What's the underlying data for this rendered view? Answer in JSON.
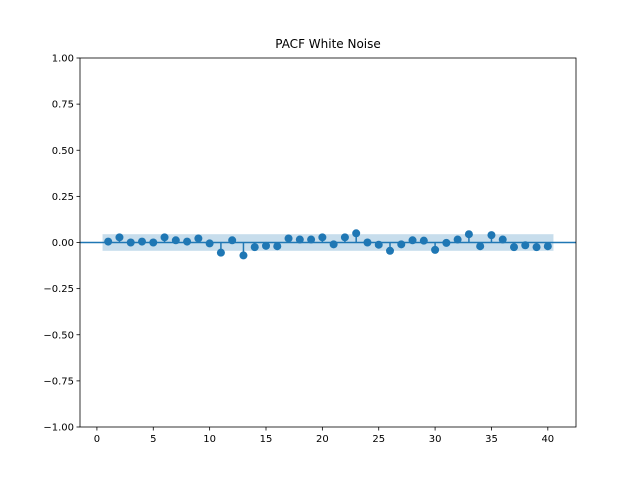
{
  "chart_data": {
    "type": "scatter",
    "subtype": "stem",
    "title": "PACF White Noise",
    "xlabel": "",
    "ylabel": "",
    "xlim": [
      -1.5,
      42.5
    ],
    "ylim": [
      -1.0,
      1.0
    ],
    "xticks": [
      0,
      5,
      10,
      15,
      20,
      25,
      30,
      35,
      40
    ],
    "xtick_labels": [
      "0",
      "5",
      "10",
      "15",
      "20",
      "25",
      "30",
      "35",
      "40"
    ],
    "yticks": [
      1.0,
      0.75,
      0.5,
      0.25,
      0.0,
      -0.25,
      -0.5,
      -0.75,
      -1.0
    ],
    "ytick_labels": [
      "1.00",
      "0.75",
      "0.50",
      "0.25",
      "0.00",
      "−0.25",
      "−0.50",
      "−0.75",
      "−1.00"
    ],
    "grid": false,
    "legend": "none",
    "baseline": 0,
    "confidence_band": {
      "x_start": 0.5,
      "x_end": 40.5,
      "lower": -0.045,
      "upper": 0.045
    },
    "x": [
      1,
      2,
      3,
      4,
      5,
      6,
      7,
      8,
      9,
      10,
      11,
      12,
      13,
      14,
      15,
      16,
      17,
      18,
      19,
      20,
      21,
      22,
      23,
      24,
      25,
      26,
      27,
      28,
      29,
      30,
      31,
      32,
      33,
      34,
      35,
      36,
      37,
      38,
      39,
      40
    ],
    "values": [
      0.005,
      0.028,
      0.0,
      0.005,
      0.0,
      0.028,
      0.012,
      0.005,
      0.022,
      -0.005,
      -0.055,
      0.012,
      -0.07,
      -0.025,
      -0.018,
      -0.02,
      0.022,
      0.016,
      0.016,
      0.028,
      -0.01,
      0.028,
      0.05,
      0.0,
      -0.012,
      -0.045,
      -0.01,
      0.012,
      0.01,
      -0.04,
      -0.002,
      0.016,
      0.045,
      -0.02,
      0.04,
      0.016,
      -0.025,
      -0.015,
      -0.025,
      -0.02
    ],
    "colors": {
      "marker": "#1f77b4",
      "band": "#1f77b4",
      "axis": "#000000",
      "background": "#ffffff"
    }
  }
}
